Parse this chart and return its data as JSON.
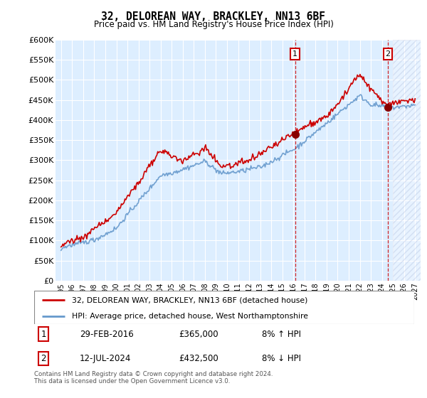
{
  "title1": "32, DELOREAN WAY, BRACKLEY, NN13 6BF",
  "title2": "Price paid vs. HM Land Registry's House Price Index (HPI)",
  "legend_line1": "32, DELOREAN WAY, BRACKLEY, NN13 6BF (detached house)",
  "legend_line2": "HPI: Average price, detached house, West Northamptonshire",
  "annotation_footer": "Contains HM Land Registry data © Crown copyright and database right 2024.\nThis data is licensed under the Open Government Licence v3.0.",
  "marker1_date": "29-FEB-2016",
  "marker1_price": "£365,000",
  "marker1_hpi": "8% ↑ HPI",
  "marker2_date": "12-JUL-2024",
  "marker2_price": "£432,500",
  "marker2_hpi": "8% ↓ HPI",
  "red_color": "#cc0000",
  "blue_color": "#6699cc",
  "bg_color": "#ddeeff",
  "ylim": [
    0,
    600000
  ],
  "yticks": [
    0,
    50000,
    100000,
    150000,
    200000,
    250000,
    300000,
    350000,
    400000,
    450000,
    500000,
    550000,
    600000
  ],
  "marker1_x_year": 2016.16,
  "marker2_x_year": 2024.54,
  "xmin": 1994.5,
  "xmax": 2027.5
}
